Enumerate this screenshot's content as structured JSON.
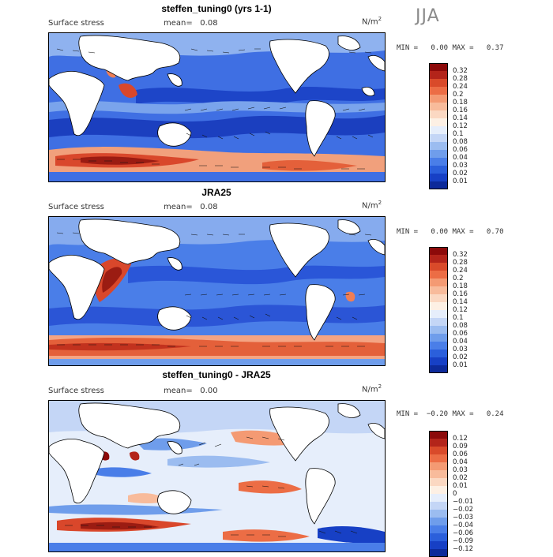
{
  "season": "JJA",
  "panels": [
    {
      "title": "steffen_tuning0 (yrs 1-1)",
      "variable": "Surface stress",
      "mean_label": "mean=",
      "mean_value": "0.08",
      "units": "N/m",
      "units_power": "2",
      "min_label": "MIN =",
      "min_value": "0.00",
      "max_label": "MAX =",
      "max_value": "0.37",
      "colorbar": {
        "labels": [
          "0.32",
          "0.28",
          "0.24",
          "0.2",
          "0.18",
          "0.16",
          "0.14",
          "0.12",
          "0.1",
          "0.08",
          "0.06",
          "0.04",
          "0.03",
          "0.02",
          "0.01"
        ],
        "colors": [
          "#8c0a0a",
          "#b3241a",
          "#d94a2a",
          "#ec6d45",
          "#f49a73",
          "#f8bb9b",
          "#fbd8c2",
          "#fdf0e4",
          "#e6eefb",
          "#c4d6f6",
          "#9bbcf0",
          "#6f9deb",
          "#4a7ee8",
          "#2b5fdb",
          "#1740c5",
          "#0d2a9a"
        ]
      }
    },
    {
      "title": "JRA25",
      "variable": "Surface stress",
      "mean_label": "mean=",
      "mean_value": "0.08",
      "units": "N/m",
      "units_power": "2",
      "min_label": "MIN =",
      "min_value": "0.00",
      "max_label": "MAX =",
      "max_value": "0.70",
      "colorbar": {
        "labels": [
          "0.32",
          "0.28",
          "0.24",
          "0.2",
          "0.18",
          "0.16",
          "0.14",
          "0.12",
          "0.1",
          "0.08",
          "0.06",
          "0.04",
          "0.03",
          "0.02",
          "0.01"
        ],
        "colors": [
          "#8c0a0a",
          "#b3241a",
          "#d94a2a",
          "#ec6d45",
          "#f49a73",
          "#f8bb9b",
          "#fbd8c2",
          "#fdf0e4",
          "#e6eefb",
          "#c4d6f6",
          "#9bbcf0",
          "#6f9deb",
          "#4a7ee8",
          "#2b5fdb",
          "#1740c5",
          "#0d2a9a"
        ]
      }
    },
    {
      "title": "steffen_tuning0 - JRA25",
      "variable": "Surface stress",
      "mean_label": "mean=",
      "mean_value": "0.00",
      "units": "N/m",
      "units_power": "2",
      "min_label": "MIN =",
      "min_value": "−0.20",
      "max_label": "MAX =",
      "max_value": "0.24",
      "colorbar": {
        "labels": [
          "0.12",
          "0.09",
          "0.06",
          "0.04",
          "0.03",
          "0.02",
          "0.01",
          "0",
          "−0.01",
          "−0.02",
          "−0.03",
          "−0.04",
          "−0.06",
          "−0.09",
          "−0.12"
        ],
        "colors": [
          "#8c0a0a",
          "#b3241a",
          "#d94a2a",
          "#ec6d45",
          "#f49a73",
          "#f8bb9b",
          "#fbd8c2",
          "#fdf0e4",
          "#e6eefb",
          "#c4d6f6",
          "#9bbcf0",
          "#6f9deb",
          "#4a7ee8",
          "#2b5fdb",
          "#1740c5",
          "#0d2a9a"
        ]
      }
    }
  ]
}
